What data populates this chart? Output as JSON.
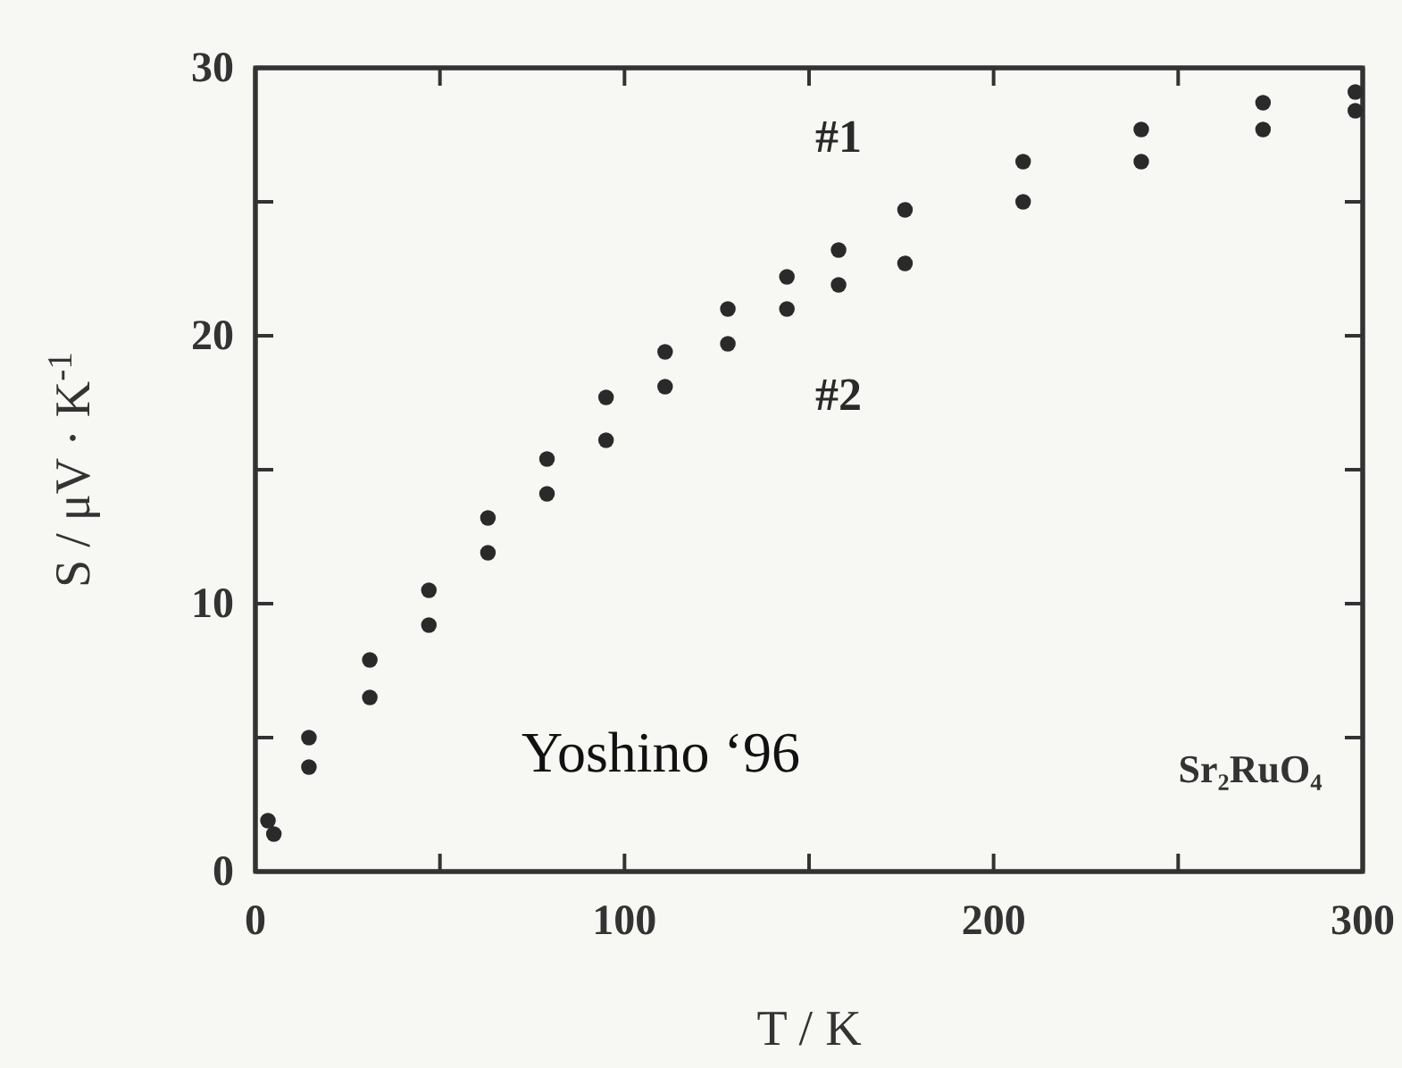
{
  "chart_data": {
    "type": "scatter",
    "xlabel": "T / K",
    "ylabel": "S / μV · K$^{-1}$",
    "marker": "circle",
    "xlim": [
      0,
      300
    ],
    "ylim": [
      0,
      30
    ],
    "xticks": [
      0,
      {
        "value": 50,
        "label": null
      },
      100,
      {
        "value": 150,
        "label": null
      },
      200,
      {
        "value": 250,
        "label": null
      },
      300
    ],
    "yticks": [
      0,
      {
        "value": 5,
        "label": null
      },
      10,
      {
        "value": 15,
        "label": null
      },
      20,
      {
        "value": 25,
        "label": null
      },
      30
    ],
    "annotations": [
      "Yoshino ‘96",
      "Sr₂RuO₄"
    ],
    "series": [
      {
        "name": "#1",
        "color": "#2a2a2a",
        "x": [
          3.4,
          14.5,
          31,
          47,
          63,
          79,
          95,
          111,
          128,
          144,
          158,
          176,
          208,
          240,
          273,
          298
        ],
        "values": [
          1.9,
          5.0,
          7.9,
          10.5,
          13.2,
          15.4,
          17.7,
          19.4,
          21,
          22.2,
          23.2,
          24.7,
          26.5,
          27.7,
          28.7,
          29.1
        ]
      },
      {
        "name": "#2",
        "color": "#2a2a2a",
        "x": [
          5,
          14.5,
          31,
          47,
          63,
          79,
          95,
          111,
          128,
          144,
          158,
          176,
          208,
          240,
          273,
          298
        ],
        "values": [
          1.4,
          3.9,
          6.5,
          9.2,
          11.9,
          14.1,
          16.1,
          18.1,
          19.7,
          21,
          21.9,
          22.7,
          25,
          26.5,
          27.7,
          28.4
        ]
      }
    ]
  }
}
